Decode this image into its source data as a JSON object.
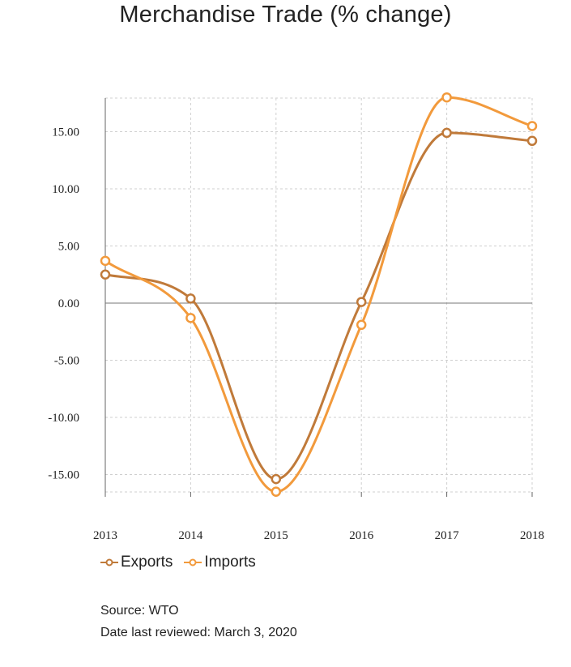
{
  "chart_data": {
    "type": "line",
    "title": "Merchandise Trade (% change)",
    "xlabel": "",
    "ylabel": "",
    "categories": [
      "2013",
      "2014",
      "2015",
      "2016",
      "2017",
      "2018"
    ],
    "series": [
      {
        "name": "Exports",
        "color": "#C07A3A",
        "values": [
          2.5,
          0.4,
          -15.4,
          0.1,
          14.9,
          14.2
        ]
      },
      {
        "name": "Imports",
        "color": "#F29A3C",
        "values": [
          3.7,
          -1.3,
          -16.5,
          -1.9,
          18.0,
          15.5
        ]
      }
    ],
    "ylim": [
      -16.5,
      18.0
    ],
    "yticks": [
      "15.00",
      "10.00",
      "5.00",
      "0.00",
      "-5.00",
      "-10.00",
      "-15.00"
    ],
    "ytick_values": [
      15,
      10,
      5,
      0,
      -5,
      -10,
      -15
    ],
    "grid": true,
    "legend_position": "bottom-left",
    "curve": "smooth"
  },
  "footer": {
    "source": "Source: WTO",
    "reviewed": "Date last reviewed: March 3, 2020"
  }
}
